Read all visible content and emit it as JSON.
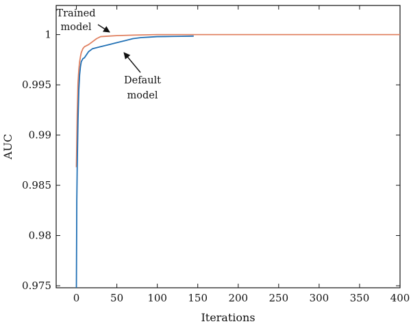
{
  "chart_data": {
    "type": "line",
    "title": "",
    "xlabel": "Iterations",
    "ylabel": "AUC",
    "xlim": [
      -25,
      400
    ],
    "ylim": [
      0.9748,
      1.0029
    ],
    "xticks": [
      0,
      50,
      100,
      150,
      200,
      250,
      300,
      350,
      400
    ],
    "xtick_labels": [
      "0",
      "50",
      "100",
      "150",
      "200",
      "250",
      "300",
      "350",
      "400"
    ],
    "yticks": [
      0.975,
      0.98,
      0.985,
      0.99,
      0.995,
      1.0
    ],
    "ytick_labels": [
      "0.975",
      "0.98",
      "0.985",
      "0.99",
      "0.995",
      "1"
    ],
    "grid": false,
    "series": [
      {
        "name": "Default model",
        "color": "#1f6fb4",
        "x": [
          0,
          0.5,
          1,
          2,
          3,
          4,
          5,
          6,
          8,
          10,
          15,
          20,
          30,
          40,
          50,
          60,
          70,
          80,
          90,
          100,
          110,
          120,
          130,
          145
        ],
        "y": [
          0.9748,
          0.9835,
          0.9868,
          0.9915,
          0.9945,
          0.996,
          0.9968,
          0.9973,
          0.9976,
          0.9977,
          0.9983,
          0.9986,
          0.9988,
          0.999,
          0.9992,
          0.9994,
          0.9996,
          0.9997,
          0.99975,
          0.9998,
          0.99981,
          0.99982,
          0.99983,
          0.99985
        ]
      },
      {
        "name": "Trained model",
        "color": "#e08060",
        "x": [
          0,
          1,
          2,
          3,
          4,
          5,
          6,
          8,
          10,
          15,
          20,
          25,
          30,
          40,
          50,
          70,
          100,
          150,
          200,
          300,
          400
        ],
        "y": [
          0.9868,
          0.992,
          0.9952,
          0.9965,
          0.9973,
          0.9978,
          0.9982,
          0.9986,
          0.9988,
          0.999,
          0.9993,
          0.9996,
          0.9998,
          0.99985,
          0.9999,
          0.99995,
          1.0,
          1.0,
          1.0,
          1.0,
          1.0
        ]
      }
    ],
    "annotations": [
      {
        "lines": [
          "Trained",
          "model"
        ],
        "points_to_series": "Trained model"
      },
      {
        "lines": [
          "Default",
          "model"
        ],
        "points_to_series": "Default model"
      }
    ]
  }
}
